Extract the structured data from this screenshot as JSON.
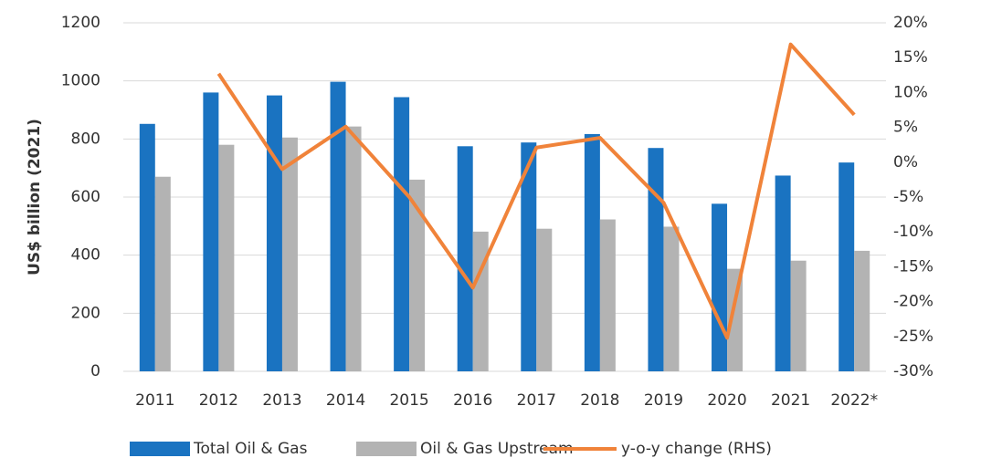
{
  "chart_data": {
    "type": "bar",
    "categories": [
      "2011",
      "2012",
      "2013",
      "2014",
      "2015",
      "2016",
      "2017",
      "2018",
      "2019",
      "2020",
      "2021",
      "2022*"
    ],
    "series": [
      {
        "name": "Total Oil & Gas",
        "color": "#1a73c1",
        "values": [
          852,
          960,
          950,
          997,
          944,
          775,
          788,
          817,
          769,
          577,
          674,
          719
        ]
      },
      {
        "name": "Oil & Gas Upstream",
        "color": "#b3b3b3",
        "values": [
          670,
          780,
          805,
          843,
          660,
          481,
          491,
          523,
          498,
          353,
          381,
          415
        ]
      },
      {
        "name": "y-o-y change (RHS)",
        "color": "#f0833a",
        "axis": "y2",
        "type": "line",
        "values": [
          null,
          12.7,
          -1,
          5.1,
          -5,
          -18,
          2.1,
          3.5,
          -5.8,
          -25.2,
          16.9,
          6.8
        ]
      }
    ],
    "ylabel": "US$ billion (2021)",
    "ylim": [
      0,
      1200
    ],
    "yticks": [
      0,
      200,
      400,
      600,
      800,
      1000,
      1200
    ],
    "y2lim": [
      -30,
      20
    ],
    "y2ticks": [
      {
        "value": -30,
        "label": "-30%"
      },
      {
        "value": -25,
        "label": "-25%"
      },
      {
        "value": -20,
        "label": "-20%"
      },
      {
        "value": -15,
        "label": "-15%"
      },
      {
        "value": -10,
        "label": "-10%"
      },
      {
        "value": -5,
        "label": "-5%"
      },
      {
        "value": 0,
        "label": "0%"
      },
      {
        "value": 5,
        "label": "5%"
      },
      {
        "value": 10,
        "label": "10%"
      },
      {
        "value": 15,
        "label": "15%"
      },
      {
        "value": 20,
        "label": "20%"
      }
    ],
    "grid": true,
    "legend": "bottom"
  }
}
